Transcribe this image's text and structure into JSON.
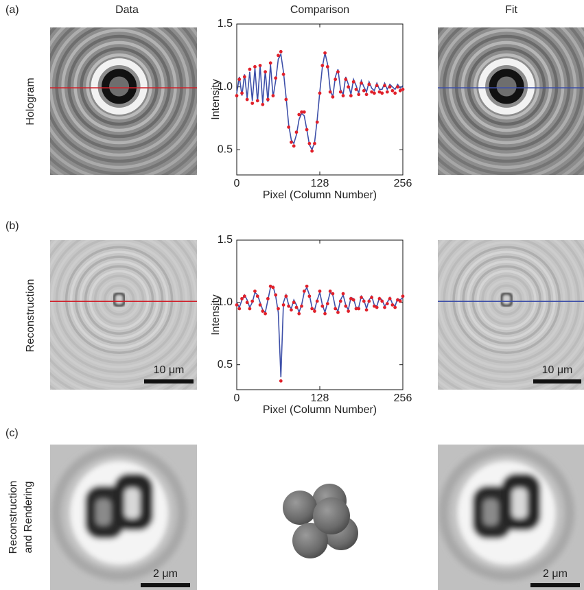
{
  "figure": {
    "panel_labels": [
      "(a)",
      "(b)",
      "(c)"
    ],
    "column_titles": [
      "Data",
      "Fit"
    ],
    "row_labels": [
      "Hologram",
      "Reconstruction"
    ],
    "rendering_label": [
      "Reconstruction",
      "and Rendering"
    ],
    "scale_bars": [
      "10 μm",
      "10 μm",
      "2 μm",
      "2 μm"
    ]
  },
  "chart_data": [
    {
      "type": "line",
      "title": "Comparison",
      "xlabel": "Pixel (Column Number)",
      "ylabel": "Intensity",
      "xlim": [
        0,
        256
      ],
      "ylim": [
        0.3,
        1.5
      ],
      "xticks": [
        0,
        128,
        256
      ],
      "yticks": [
        0.5,
        {
          "value": 1,
          "label": "1.0"
        },
        1.5
      ],
      "x": [
        0,
        4,
        8,
        12,
        16,
        20,
        24,
        28,
        32,
        36,
        40,
        44,
        48,
        52,
        56,
        60,
        64,
        68,
        72,
        76,
        80,
        84,
        88,
        92,
        96,
        100,
        104,
        108,
        112,
        116,
        120,
        124,
        128,
        132,
        136,
        140,
        144,
        148,
        152,
        156,
        160,
        164,
        168,
        172,
        176,
        180,
        184,
        188,
        192,
        196,
        200,
        204,
        208,
        212,
        216,
        220,
        224,
        228,
        232,
        236,
        240,
        244,
        248,
        252,
        256
      ],
      "series": [
        {
          "color": "#3d4fa8",
          "marker": false,
          "values": [
            0.95,
            1.08,
            0.93,
            1.1,
            0.91,
            1.12,
            0.89,
            1.15,
            0.88,
            1.17,
            0.87,
            1.13,
            0.88,
            1.18,
            0.92,
            1.05,
            1.22,
            1.26,
            1.12,
            0.92,
            0.7,
            0.58,
            0.55,
            0.62,
            0.74,
            0.79,
            0.77,
            0.66,
            0.54,
            0.5,
            0.56,
            0.74,
            0.96,
            1.16,
            1.27,
            1.18,
            0.98,
            0.92,
            1.08,
            1.14,
            0.98,
            0.94,
            1.08,
            1.02,
            0.94,
            1.06,
            1.01,
            0.95,
            1.05,
            1.0,
            0.96,
            1.04,
            0.99,
            0.97,
            1.03,
            0.98,
            0.98,
            1.03,
            0.98,
            1.02,
            1.0,
            0.98,
            1.02,
            0.99,
            1.01
          ]
        },
        {
          "color": "#e0202a",
          "marker": true,
          "values": [
            0.93,
            1.06,
            0.95,
            1.08,
            0.9,
            1.14,
            0.87,
            1.16,
            0.89,
            1.17,
            0.86,
            1.12,
            0.9,
            1.19,
            0.93,
            1.07,
            1.25,
            1.28,
            1.1,
            0.9,
            0.68,
            0.56,
            0.53,
            0.64,
            0.78,
            0.8,
            0.8,
            0.66,
            0.55,
            0.49,
            0.55,
            0.72,
            0.95,
            1.17,
            1.27,
            1.16,
            0.96,
            0.92,
            1.06,
            1.12,
            0.96,
            0.93,
            1.06,
            1.0,
            0.93,
            1.04,
            0.98,
            0.94,
            1.03,
            0.97,
            0.94,
            1.02,
            0.96,
            0.95,
            1.01,
            0.96,
            0.95,
            1.01,
            0.96,
            1.0,
            0.97,
            0.95,
            1.0,
            0.97,
            0.98
          ]
        }
      ]
    },
    {
      "type": "line",
      "xlabel": "Pixel (Column Number)",
      "ylabel": "Intensity",
      "xlim": [
        0,
        256
      ],
      "ylim": [
        0.3,
        1.5
      ],
      "xticks": [
        0,
        128,
        256
      ],
      "yticks": [
        0.5,
        {
          "value": 1,
          "label": "1.0"
        },
        1.5
      ],
      "x": [
        0,
        4,
        8,
        12,
        16,
        20,
        24,
        28,
        32,
        36,
        40,
        44,
        48,
        52,
        56,
        60,
        64,
        68,
        72,
        76,
        80,
        84,
        88,
        92,
        96,
        100,
        104,
        108,
        112,
        116,
        120,
        124,
        128,
        132,
        136,
        140,
        144,
        148,
        152,
        156,
        160,
        164,
        168,
        172,
        176,
        180,
        184,
        188,
        192,
        196,
        200,
        204,
        208,
        212,
        216,
        220,
        224,
        228,
        232,
        236,
        240,
        244,
        248,
        252,
        256
      ],
      "series": [
        {
          "color": "#3d4fa8",
          "marker": false,
          "values": [
            1.0,
            0.96,
            1.02,
            1.06,
            1.02,
            0.96,
            1.0,
            1.08,
            1.06,
            1.0,
            0.94,
            0.92,
            1.02,
            1.12,
            1.13,
            1.05,
            0.92,
            0.4,
            1.0,
            1.06,
            0.98,
            0.95,
            1.02,
            0.98,
            0.92,
            0.98,
            1.08,
            1.12,
            1.06,
            0.96,
            0.94,
            1.02,
            1.08,
            0.98,
            0.92,
            1.0,
            1.08,
            1.06,
            0.96,
            0.93,
            1.02,
            1.06,
            0.98,
            0.94,
            1.04,
            1.03,
            0.96,
            0.96,
            1.05,
            1.02,
            0.95,
            1.02,
            1.05,
            0.98,
            0.97,
            1.04,
            1.02,
            0.97,
            1.0,
            1.04,
            0.99,
            0.97,
            1.03,
            1.02,
            1.04
          ]
        },
        {
          "color": "#e0202a",
          "marker": true,
          "values": [
            0.98,
            0.95,
            1.03,
            1.05,
            1.0,
            0.95,
            1.01,
            1.09,
            1.05,
            0.98,
            0.93,
            0.91,
            1.03,
            1.13,
            1.12,
            1.06,
            0.95,
            0.37,
            0.98,
            1.05,
            0.97,
            0.94,
            1.0,
            0.96,
            0.91,
            0.97,
            1.09,
            1.13,
            1.05,
            0.95,
            0.93,
            1.01,
            1.09,
            0.97,
            0.91,
            0.99,
            1.09,
            1.07,
            0.95,
            0.92,
            1.01,
            1.07,
            0.97,
            0.93,
            1.03,
            1.02,
            0.95,
            0.95,
            1.04,
            1.01,
            0.94,
            1.01,
            1.04,
            0.97,
            0.96,
            1.03,
            1.01,
            0.96,
            0.99,
            1.03,
            0.98,
            0.96,
            1.02,
            1.01,
            1.05
          ]
        }
      ]
    }
  ]
}
